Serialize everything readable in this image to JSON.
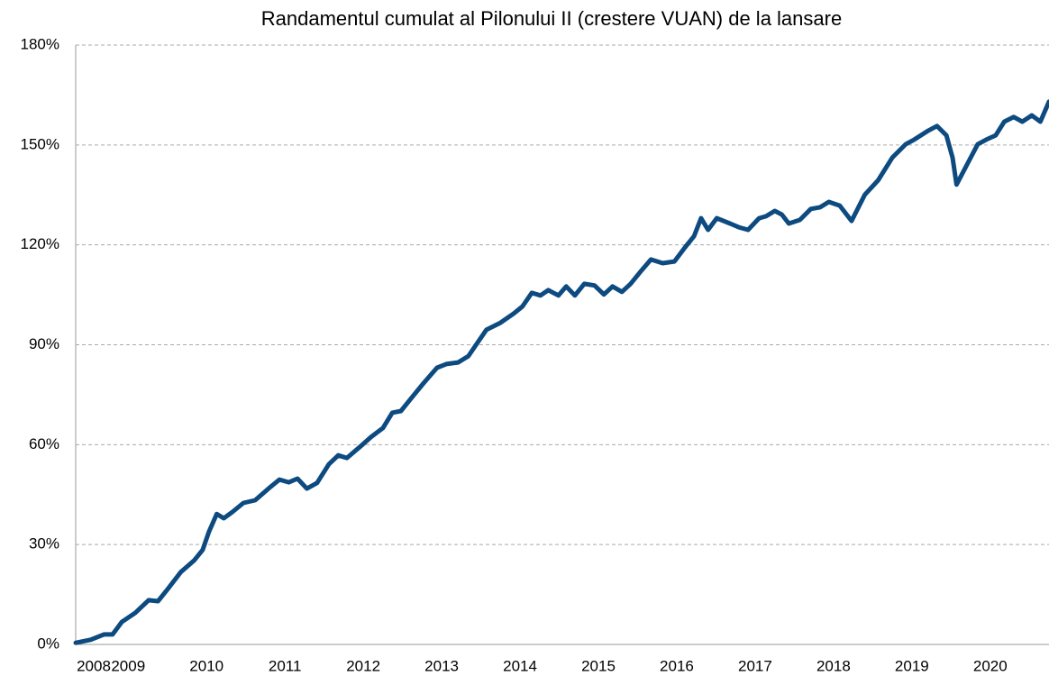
{
  "chart_data": {
    "type": "line",
    "title": "Randamentul cumulat al Pilonului II (crestere VUAN) de la lansare",
    "x": [
      2008.33,
      2008.52,
      2008.69,
      2008.8,
      2008.92,
      2009.09,
      2009.26,
      2009.38,
      2009.49,
      2009.67,
      2009.84,
      2009.95,
      2010.03,
      2010.13,
      2010.22,
      2010.33,
      2010.47,
      2010.62,
      2010.82,
      2010.93,
      2011.05,
      2011.16,
      2011.28,
      2011.41,
      2011.56,
      2011.68,
      2011.79,
      2011.97,
      2012.1,
      2012.25,
      2012.37,
      2012.48,
      2012.6,
      2012.77,
      2012.94,
      2013.06,
      2013.21,
      2013.34,
      2013.46,
      2013.57,
      2013.75,
      2013.92,
      2014.03,
      2014.15,
      2014.26,
      2014.36,
      2014.49,
      2014.59,
      2014.7,
      2014.82,
      2014.95,
      2015.07,
      2015.18,
      2015.3,
      2015.41,
      2015.55,
      2015.67,
      2015.82,
      2015.97,
      2016.1,
      2016.22,
      2016.31,
      2016.4,
      2016.51,
      2016.68,
      2016.79,
      2016.91,
      2017.05,
      2017.14,
      2017.25,
      2017.34,
      2017.43,
      2017.57,
      2017.71,
      2017.83,
      2017.94,
      2018.08,
      2018.23,
      2018.4,
      2018.57,
      2018.75,
      2018.92,
      2019.03,
      2019.21,
      2019.32,
      2019.44,
      2019.52,
      2019.57,
      2019.72,
      2019.84,
      2019.95,
      2020.07,
      2020.18,
      2020.3,
      2020.41,
      2020.53,
      2020.64,
      2020.75
    ],
    "series": [
      {
        "color": "#0d4a80",
        "values": [
          0.5,
          1.4,
          3.0,
          3.0,
          6.8,
          9.5,
          13.3,
          13.0,
          16.2,
          21.7,
          25.2,
          28.4,
          33.8,
          39.2,
          37.9,
          39.8,
          42.5,
          43.3,
          47.4,
          49.5,
          48.7,
          49.8,
          46.8,
          48.5,
          54.1,
          56.8,
          56.0,
          59.6,
          62.3,
          65.0,
          69.6,
          70.1,
          73.6,
          78.5,
          83.1,
          84.2,
          84.7,
          86.6,
          90.7,
          94.5,
          96.6,
          99.4,
          101.5,
          105.6,
          104.8,
          106.4,
          104.8,
          107.5,
          104.8,
          108.3,
          107.8,
          105.1,
          107.5,
          105.9,
          108.3,
          112.3,
          115.6,
          114.5,
          115.0,
          119.1,
          122.6,
          128.0,
          124.5,
          128.0,
          126.4,
          125.3,
          124.5,
          128.0,
          128.6,
          130.2,
          129.1,
          126.4,
          127.5,
          130.8,
          131.3,
          132.9,
          131.8,
          127.2,
          135.1,
          139.4,
          146.2,
          150.2,
          151.6,
          154.3,
          155.7,
          152.9,
          146.2,
          138.1,
          144.8,
          150.2,
          151.6,
          152.9,
          157.0,
          158.4,
          157.0,
          158.9,
          157.0,
          163.0
        ]
      }
    ],
    "xlim": [
      2008.33,
      2020.75
    ],
    "xticks": [
      {
        "value": 2008.33,
        "label": "2008"
      },
      2009,
      2010,
      2011,
      2012,
      2013,
      2014,
      2015,
      2016,
      2017,
      2018,
      2019,
      2020
    ],
    "ylim": [
      0,
      180
    ],
    "yticks": [
      {
        "value": 0,
        "label": "0%"
      },
      {
        "value": 30,
        "label": "30%"
      },
      {
        "value": 60,
        "label": "60%"
      },
      {
        "value": 90,
        "label": "90%"
      },
      {
        "value": 120,
        "label": "120%"
      },
      {
        "value": 150,
        "label": "150%"
      },
      {
        "value": 180,
        "label": "180%"
      }
    ],
    "grid": true
  }
}
